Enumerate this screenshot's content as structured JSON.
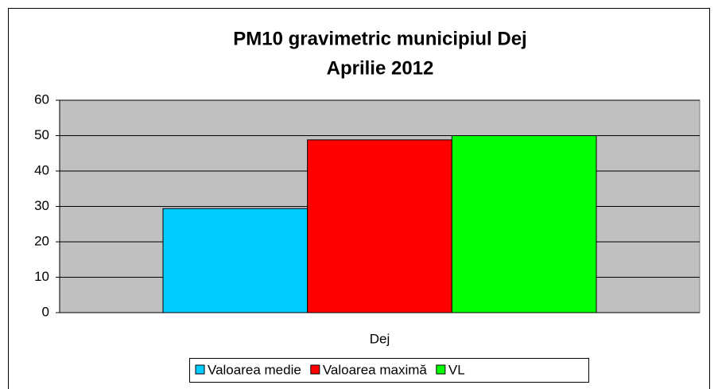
{
  "chart_data": {
    "type": "bar",
    "title": "PM10 gravimetric municipiul Dej",
    "subtitle": "Aprilie 2012",
    "categories": [
      "Dej"
    ],
    "series": [
      {
        "name": "Valoarea medie",
        "color": "#00ccff",
        "values": [
          29.4
        ]
      },
      {
        "name": "Valoarea maximă",
        "color": "#ff0000",
        "values": [
          48.8
        ]
      },
      {
        "name": "VL",
        "color": "#00ff00",
        "values": [
          50
        ]
      }
    ],
    "ylim": [
      0,
      60
    ],
    "yticks": [
      0,
      10,
      20,
      30,
      40,
      50,
      60
    ],
    "grid": true,
    "legend": "bottom"
  }
}
